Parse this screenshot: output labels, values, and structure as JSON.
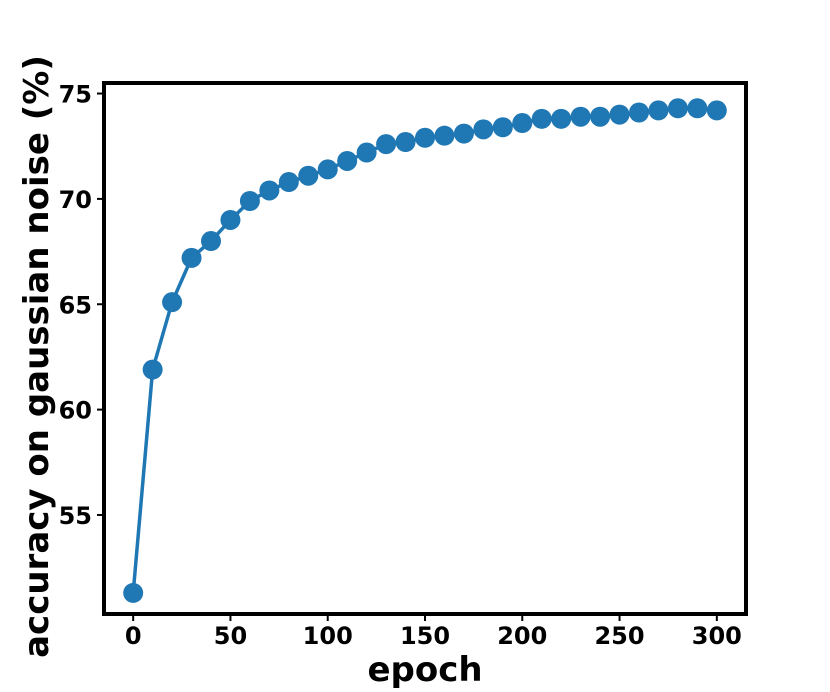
{
  "chart_data": {
    "type": "line",
    "xlabel": "epoch",
    "ylabel": "accuracy on gaussian noise (%)",
    "xlim": [
      -15,
      315
    ],
    "ylim": [
      50.3,
      75.5
    ],
    "xticks": [
      0,
      50,
      100,
      150,
      200,
      250,
      300
    ],
    "yticks": [
      55,
      60,
      65,
      70,
      75
    ],
    "grid": false,
    "color": "#1f77b4",
    "series": [
      {
        "x": [
          0,
          10,
          20,
          30,
          40,
          50,
          60,
          70,
          80,
          90,
          100,
          110,
          120,
          130,
          140,
          150,
          160,
          170,
          180,
          190,
          200,
          210,
          220,
          230,
          240,
          250,
          260,
          270,
          280,
          290,
          300
        ],
        "y": [
          51.3,
          61.9,
          65.1,
          67.2,
          68.0,
          69.0,
          69.9,
          70.4,
          70.8,
          71.1,
          71.4,
          71.8,
          72.2,
          72.6,
          72.7,
          72.9,
          73.0,
          73.1,
          73.3,
          73.4,
          73.6,
          73.8,
          73.8,
          73.9,
          73.9,
          74.0,
          74.1,
          74.2,
          74.3,
          74.3,
          74.2
        ]
      }
    ]
  }
}
